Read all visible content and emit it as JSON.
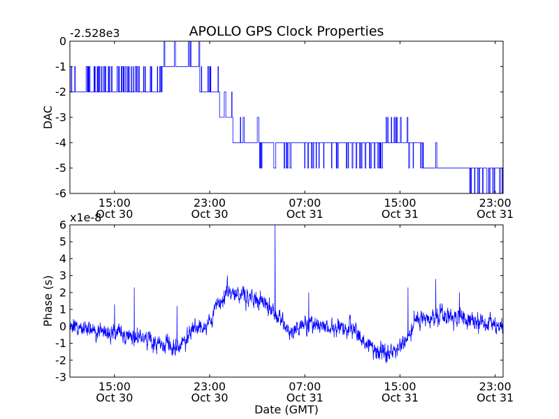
{
  "title": "APOLLO GPS Clock Properties",
  "colors": {
    "line": "#0000ff",
    "axes": "#000000",
    "background": "#ffffff"
  },
  "chart_data": [
    {
      "type": "line",
      "name": "dac-subplot",
      "ylabel": "DAC",
      "offset_label": "-2.528e3",
      "ylim": [
        -6,
        0
      ],
      "yticks": [
        {
          "value": 0,
          "label": "0"
        },
        {
          "value": -1,
          "label": "-1"
        },
        {
          "value": -2,
          "label": "-2"
        },
        {
          "value": -3,
          "label": "-3"
        },
        {
          "value": -4,
          "label": "-4"
        },
        {
          "value": -5,
          "label": "-5"
        },
        {
          "value": -6,
          "label": "-6"
        }
      ],
      "xlim": [
        "2024-10-30T11:15",
        "2024-10-31T23:40"
      ],
      "xticks": [
        {
          "at": "2024-10-30T15:00",
          "label": [
            "15:00",
            "Oct 30"
          ]
        },
        {
          "at": "2024-10-30T23:00",
          "label": [
            "23:00",
            "Oct 30"
          ]
        },
        {
          "at": "2024-10-31T07:00",
          "label": [
            "07:00",
            "Oct 31"
          ]
        },
        {
          "at": "2024-10-31T15:00",
          "label": [
            "15:00",
            "Oct 31"
          ]
        },
        {
          "at": "2024-10-31T23:00",
          "label": [
            "23:00",
            "Oct 31"
          ]
        }
      ],
      "segments": [
        {
          "start": "2024-10-30T11:15",
          "end": "2024-10-30T19:00",
          "base": -2,
          "alt": -1,
          "toggle": 0.55
        },
        {
          "start": "2024-10-30T19:00",
          "end": "2024-10-30T20:10",
          "base": -1,
          "alt": 0,
          "toggle": 0.12
        },
        {
          "start": "2024-10-30T20:10",
          "end": "2024-10-30T21:10",
          "base": -1,
          "alt": 0,
          "toggle": 0.0
        },
        {
          "start": "2024-10-30T21:10",
          "end": "2024-10-30T22:10",
          "base": -1,
          "alt": 0,
          "toggle": 0.15
        },
        {
          "start": "2024-10-30T22:10",
          "end": "2024-10-30T23:50",
          "base": -2,
          "alt": -1,
          "toggle": 0.35
        },
        {
          "start": "2024-10-30T23:50",
          "end": "2024-10-31T00:55",
          "base": -3,
          "alt": -2,
          "toggle": 0.1
        },
        {
          "start": "2024-10-31T00:55",
          "end": "2024-10-31T03:10",
          "base": -4,
          "alt": -3,
          "toggle": 0.2
        },
        {
          "start": "2024-10-31T03:10",
          "end": "2024-10-31T06:05",
          "base": -4,
          "alt": -5,
          "toggle": 0.25
        },
        {
          "start": "2024-10-31T06:05",
          "end": "2024-10-31T06:45",
          "base": -4,
          "alt": -3,
          "toggle": 0.3
        },
        {
          "start": "2024-10-31T06:45",
          "end": "2024-10-31T13:50",
          "base": -4,
          "alt": -5,
          "toggle": 0.45
        },
        {
          "start": "2024-10-31T13:50",
          "end": "2024-10-31T15:40",
          "base": -4,
          "alt": -3,
          "toggle": 0.4
        },
        {
          "start": "2024-10-31T15:40",
          "end": "2024-10-31T17:00",
          "base": -4,
          "alt": -5,
          "toggle": 0.25
        },
        {
          "start": "2024-10-31T17:00",
          "end": "2024-10-31T20:50",
          "base": -5,
          "alt": -4,
          "toggle": 0.05
        },
        {
          "start": "2024-10-31T20:50",
          "end": "2024-10-31T23:40",
          "base": -5,
          "alt": -6,
          "toggle": 0.45
        }
      ]
    },
    {
      "type": "line",
      "name": "phase-subplot",
      "ylabel": "Phase (s)",
      "xlabel": "Date (GMT)",
      "offset_label": "x1e-8",
      "ylim": [
        -3,
        6
      ],
      "yticks": [
        {
          "value": -3,
          "label": "-3"
        },
        {
          "value": -2,
          "label": "-2"
        },
        {
          "value": -1,
          "label": "-1"
        },
        {
          "value": 0,
          "label": "0"
        },
        {
          "value": 1,
          "label": "1"
        },
        {
          "value": 2,
          "label": "2"
        },
        {
          "value": 3,
          "label": "3"
        },
        {
          "value": 4,
          "label": "4"
        },
        {
          "value": 5,
          "label": "5"
        },
        {
          "value": 6,
          "label": "6"
        }
      ],
      "xlim": [
        "2024-10-30T11:15",
        "2024-10-31T23:40"
      ],
      "xticks": [
        {
          "at": "2024-10-30T15:00",
          "label": [
            "15:00",
            "Oct 30"
          ]
        },
        {
          "at": "2024-10-30T23:00",
          "label": [
            "23:00",
            "Oct 30"
          ]
        },
        {
          "at": "2024-10-31T07:00",
          "label": [
            "07:00",
            "Oct 31"
          ]
        },
        {
          "at": "2024-10-31T15:00",
          "label": [
            "15:00",
            "Oct 31"
          ]
        },
        {
          "at": "2024-10-31T23:00",
          "label": [
            "23:00",
            "Oct 31"
          ]
        }
      ],
      "trend": [
        {
          "t": "2024-10-30T11:15",
          "v": 0.1
        },
        {
          "t": "2024-10-30T13:00",
          "v": -0.3
        },
        {
          "t": "2024-10-30T15:00",
          "v": -0.4
        },
        {
          "t": "2024-10-30T17:00",
          "v": -0.6
        },
        {
          "t": "2024-10-30T19:30",
          "v": -1.2
        },
        {
          "t": "2024-10-30T20:30",
          "v": -1.3
        },
        {
          "t": "2024-10-30T21:30",
          "v": -0.2
        },
        {
          "t": "2024-10-30T23:00",
          "v": 0.3
        },
        {
          "t": "2024-10-30T23:45",
          "v": 1.3
        },
        {
          "t": "2024-10-31T00:30",
          "v": 1.9
        },
        {
          "t": "2024-10-31T02:00",
          "v": 1.8
        },
        {
          "t": "2024-10-31T03:15",
          "v": 1.5
        },
        {
          "t": "2024-10-31T04:45",
          "v": 0.6
        },
        {
          "t": "2024-10-31T05:45",
          "v": -0.3
        },
        {
          "t": "2024-10-31T07:00",
          "v": 0.1
        },
        {
          "t": "2024-10-31T09:00",
          "v": -0.1
        },
        {
          "t": "2024-10-31T11:00",
          "v": -0.2
        },
        {
          "t": "2024-10-31T13:00",
          "v": -1.5
        },
        {
          "t": "2024-10-31T14:00",
          "v": -1.7
        },
        {
          "t": "2024-10-31T15:30",
          "v": -0.8
        },
        {
          "t": "2024-10-31T16:15",
          "v": 0.3
        },
        {
          "t": "2024-10-31T18:00",
          "v": 0.6
        },
        {
          "t": "2024-10-31T20:00",
          "v": 0.6
        },
        {
          "t": "2024-10-31T21:30",
          "v": 0.3
        },
        {
          "t": "2024-10-31T23:40",
          "v": -0.1
        }
      ],
      "spikes": [
        {
          "t": "2024-10-30T15:00",
          "v": 1.3
        },
        {
          "t": "2024-10-30T16:40",
          "v": 2.3
        },
        {
          "t": "2024-10-30T20:15",
          "v": 1.2
        },
        {
          "t": "2024-10-31T00:30",
          "v": 3.0
        },
        {
          "t": "2024-10-31T04:30",
          "v": 6.0
        },
        {
          "t": "2024-10-31T07:20",
          "v": 2.0
        },
        {
          "t": "2024-10-31T15:40",
          "v": 2.3
        },
        {
          "t": "2024-10-31T18:00",
          "v": 2.8
        },
        {
          "t": "2024-10-31T20:00",
          "v": 2.0
        }
      ]
    }
  ]
}
